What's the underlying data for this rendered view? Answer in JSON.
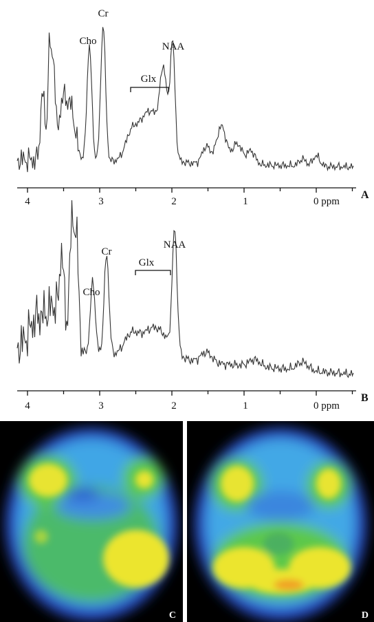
{
  "panels": [
    {
      "label": "A",
      "peaks": [
        "Cho",
        "Cr",
        "Glx",
        "NAA"
      ],
      "ticks": [
        "4",
        "3",
        "2",
        "1",
        "0 ppm"
      ]
    },
    {
      "label": "B",
      "peaks": [
        "Cho",
        "Cr",
        "Glx",
        "NAA"
      ],
      "ticks": [
        "4",
        "3",
        "2",
        "1",
        "0 ppm"
      ]
    }
  ],
  "images": [
    {
      "label": "C"
    },
    {
      "label": "D"
    }
  ]
}
